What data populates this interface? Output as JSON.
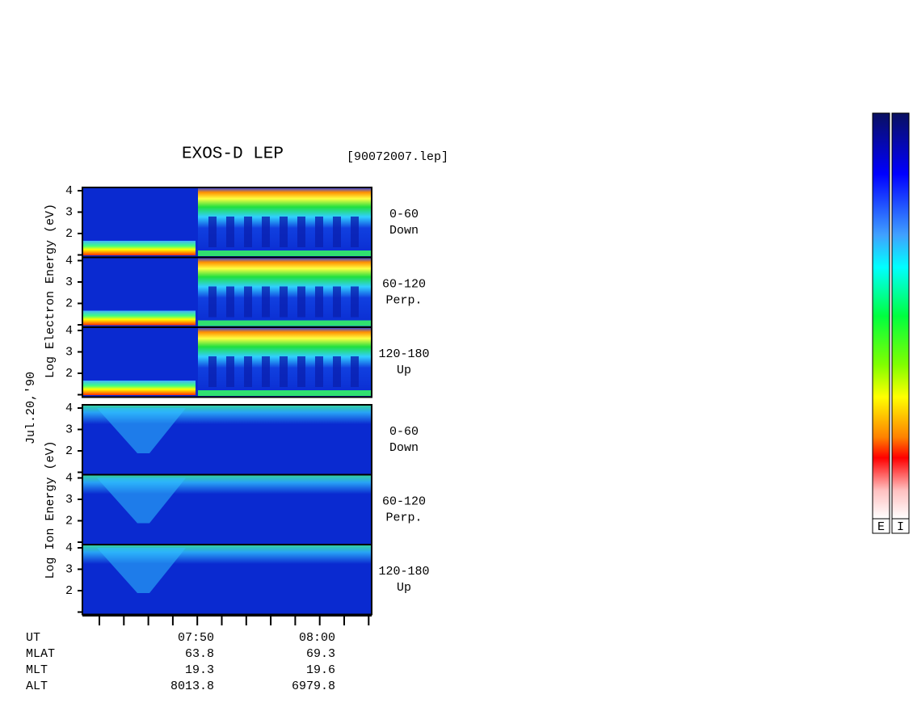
{
  "header": {
    "title": "EXOS-D LEP",
    "file": "[90072007.lep]"
  },
  "date": "Jul.20,'90",
  "electron": {
    "axis_label": "Log Electron Energy (eV)",
    "panels": [
      {
        "pitch": "0-60",
        "direction": "Down"
      },
      {
        "pitch": "60-120",
        "direction": "Perp."
      },
      {
        "pitch": "120-180",
        "direction": "Up"
      }
    ]
  },
  "ion": {
    "axis_label": "Log Ion Energy (eV)",
    "panels": [
      {
        "pitch": "0-60",
        "direction": "Down"
      },
      {
        "pitch": "60-120",
        "direction": "Perp."
      },
      {
        "pitch": "120-180",
        "direction": "Up"
      }
    ]
  },
  "energy_ticks": [
    "2",
    "3",
    "4"
  ],
  "ephemeris": [
    [
      "UT",
      "07:50",
      "08:00"
    ],
    [
      "MLAT",
      "63.8",
      "69.3"
    ],
    [
      "MLT",
      "19.3",
      "19.6"
    ],
    [
      "ALT",
      "8013.8",
      "6979.8"
    ]
  ],
  "colorbars": [
    "E",
    "I"
  ]
}
